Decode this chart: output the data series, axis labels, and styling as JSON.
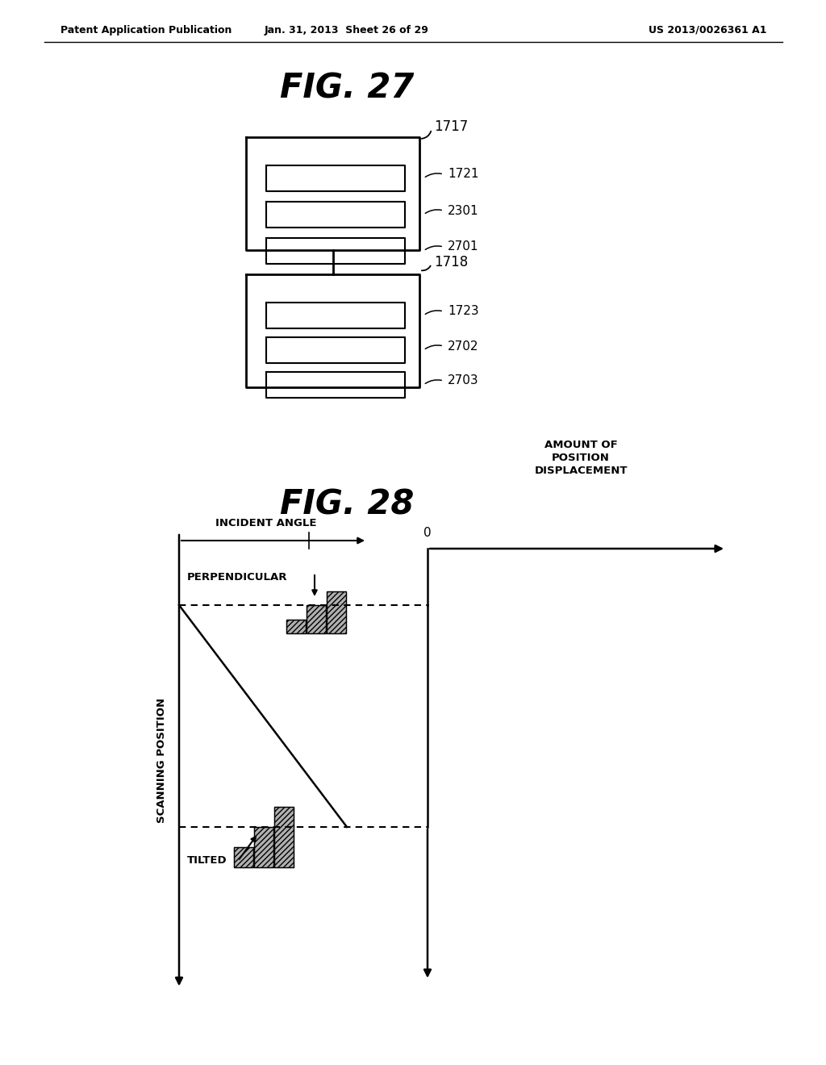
{
  "bg_color": "#ffffff",
  "header_left": "Patent Application Publication",
  "header_mid": "Jan. 31, 2013  Sheet 26 of 29",
  "header_right": "US 2013/0026361 A1",
  "fig27_title": "FIG. 27",
  "fig28_title": "FIG. 28",
  "box1_label": "1717",
  "box1_slots": [
    "1721",
    "2301",
    "2701"
  ],
  "box2_label": "1718",
  "box2_slots": [
    "1723",
    "2702",
    "2703"
  ],
  "fig28_incident_label": "INCIDENT ANGLE",
  "fig28_perpendicular": "PERPENDICULAR",
  "fig28_tilted": "TILTED",
  "fig28_amount_label": "AMOUNT OF\nPOSITION\nDISPLACEMENT",
  "fig28_zero": "0",
  "fig28_scanning": "SCANNING POSITION"
}
